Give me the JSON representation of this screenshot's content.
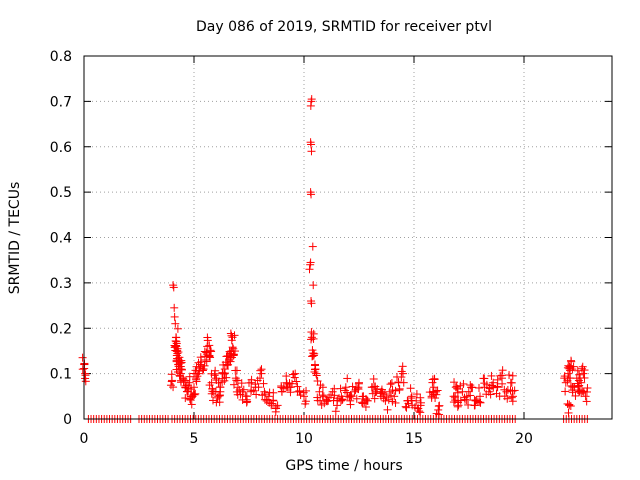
{
  "chart_data": {
    "type": "scatter",
    "title": "Day 086 of 2019, SRMTID for receiver ptvl",
    "xlabel": "GPS time / hours",
    "ylabel": "SRMTID / TECUs",
    "xlim": [
      0,
      24
    ],
    "ylim": [
      0,
      0.8
    ],
    "xticks": [
      0,
      5,
      10,
      15,
      20
    ],
    "xtick_labels": [
      "0",
      "5",
      "10",
      "15",
      "20"
    ],
    "yticks": [
      0,
      0.1,
      0.2,
      0.3,
      0.4,
      0.5,
      0.6,
      0.7,
      0.8
    ],
    "ytick_labels": [
      "0",
      "0.1",
      "0.2",
      "0.3",
      "0.4",
      "0.5",
      "0.6",
      "0.7",
      "0.8"
    ],
    "grid": true,
    "marker": "+",
    "marker_color": "#ff0000",
    "series": [
      {
        "name": "SRMTID",
        "points": [
          [
            0.02,
            0.12
          ],
          [
            0.05,
            0.1
          ],
          [
            4.05,
            0.295
          ],
          [
            4.08,
            0.29
          ],
          [
            4.1,
            0.245
          ],
          [
            4.12,
            0.225
          ],
          [
            4.15,
            0.21
          ],
          [
            4.18,
            0.18
          ],
          [
            4.2,
            0.16
          ],
          [
            4.22,
            0.14
          ],
          [
            4.25,
            0.155
          ],
          [
            4.28,
            0.12
          ],
          [
            4.3,
            0.13
          ],
          [
            4.0,
            0.085
          ],
          [
            4.35,
            0.11
          ],
          [
            4.4,
            0.1
          ],
          [
            4.5,
            0.09
          ],
          [
            4.6,
            0.07
          ],
          [
            4.7,
            0.06
          ],
          [
            4.8,
            0.08
          ],
          [
            4.9,
            0.05
          ],
          [
            5.0,
            0.07
          ],
          [
            5.1,
            0.09
          ],
          [
            5.2,
            0.1
          ],
          [
            5.3,
            0.12
          ],
          [
            5.4,
            0.11
          ],
          [
            5.5,
            0.13
          ],
          [
            5.6,
            0.16
          ],
          [
            5.7,
            0.14
          ],
          [
            5.8,
            0.08
          ],
          [
            5.9,
            0.06
          ],
          [
            6.0,
            0.09
          ],
          [
            6.1,
            0.05
          ],
          [
            6.2,
            0.07
          ],
          [
            6.3,
            0.1
          ],
          [
            6.4,
            0.11
          ],
          [
            6.5,
            0.12
          ],
          [
            6.6,
            0.13
          ],
          [
            6.7,
            0.15
          ],
          [
            6.75,
            0.18
          ],
          [
            6.8,
            0.14
          ],
          [
            6.9,
            0.09
          ],
          [
            7.0,
            0.07
          ],
          [
            7.2,
            0.06
          ],
          [
            7.4,
            0.05
          ],
          [
            7.6,
            0.08
          ],
          [
            7.8,
            0.07
          ],
          [
            8.0,
            0.09
          ],
          [
            8.2,
            0.06
          ],
          [
            8.4,
            0.05
          ],
          [
            8.6,
            0.04
          ],
          [
            8.8,
            0.03
          ],
          [
            9.0,
            0.06
          ],
          [
            9.2,
            0.08
          ],
          [
            9.4,
            0.07
          ],
          [
            9.6,
            0.1
          ],
          [
            9.8,
            0.06
          ],
          [
            10.0,
            0.05
          ],
          [
            10.25,
            0.33
          ],
          [
            10.28,
            0.34
          ],
          [
            10.3,
            0.345
          ],
          [
            10.32,
            0.26
          ],
          [
            10.34,
            0.255
          ],
          [
            10.36,
            0.18
          ],
          [
            10.3,
            0.5
          ],
          [
            10.32,
            0.495
          ],
          [
            10.3,
            0.61
          ],
          [
            10.32,
            0.605
          ],
          [
            10.34,
            0.59
          ],
          [
            10.33,
            0.7
          ],
          [
            10.35,
            0.705
          ],
          [
            10.31,
            0.69
          ],
          [
            10.4,
            0.38
          ],
          [
            10.42,
            0.295
          ],
          [
            10.45,
            0.14
          ],
          [
            10.5,
            0.12
          ],
          [
            10.55,
            0.1
          ],
          [
            10.7,
            0.06
          ],
          [
            10.9,
            0.05
          ],
          [
            11.1,
            0.04
          ],
          [
            11.3,
            0.06
          ],
          [
            11.5,
            0.03
          ],
          [
            11.7,
            0.05
          ],
          [
            11.9,
            0.07
          ],
          [
            12.1,
            0.04
          ],
          [
            12.3,
            0.06
          ],
          [
            12.5,
            0.08
          ],
          [
            12.7,
            0.05
          ],
          [
            12.9,
            0.04
          ],
          [
            13.1,
            0.07
          ],
          [
            13.3,
            0.06
          ],
          [
            13.5,
            0.05
          ],
          [
            13.7,
            0.04
          ],
          [
            13.9,
            0.06
          ],
          [
            14.1,
            0.05
          ],
          [
            14.3,
            0.08
          ],
          [
            14.5,
            0.1
          ],
          [
            14.7,
            0.04
          ],
          [
            14.9,
            0.05
          ],
          [
            15.1,
            0.04
          ],
          [
            15.3,
            0.03
          ],
          [
            15.8,
            0.05
          ],
          [
            15.9,
            0.07
          ],
          [
            16.0,
            0.06
          ],
          [
            16.1,
            0.02
          ],
          [
            16.8,
            0.05
          ],
          [
            16.9,
            0.07
          ],
          [
            17.0,
            0.04
          ],
          [
            17.2,
            0.06
          ],
          [
            17.4,
            0.05
          ],
          [
            17.6,
            0.07
          ],
          [
            17.8,
            0.04
          ],
          [
            18.0,
            0.05
          ],
          [
            18.2,
            0.07
          ],
          [
            18.4,
            0.06
          ],
          [
            18.6,
            0.08
          ],
          [
            18.8,
            0.07
          ],
          [
            19.0,
            0.09
          ],
          [
            19.2,
            0.06
          ],
          [
            19.4,
            0.08
          ],
          [
            19.5,
            0.05
          ],
          [
            21.9,
            0.08
          ],
          [
            22.0,
            0.1
          ],
          [
            22.1,
            0.09
          ],
          [
            22.2,
            0.11
          ],
          [
            22.3,
            0.07
          ],
          [
            22.4,
            0.09
          ],
          [
            22.5,
            0.06
          ],
          [
            22.6,
            0.08
          ],
          [
            22.7,
            0.1
          ],
          [
            22.8,
            0.05
          ],
          [
            22.05,
            0.03
          ]
        ]
      }
    ],
    "zero_band": [
      [
        0.2,
        2.2
      ],
      [
        2.5,
        3.9
      ],
      [
        4.0,
        19.6
      ],
      [
        21.8,
        22.9
      ]
    ]
  }
}
